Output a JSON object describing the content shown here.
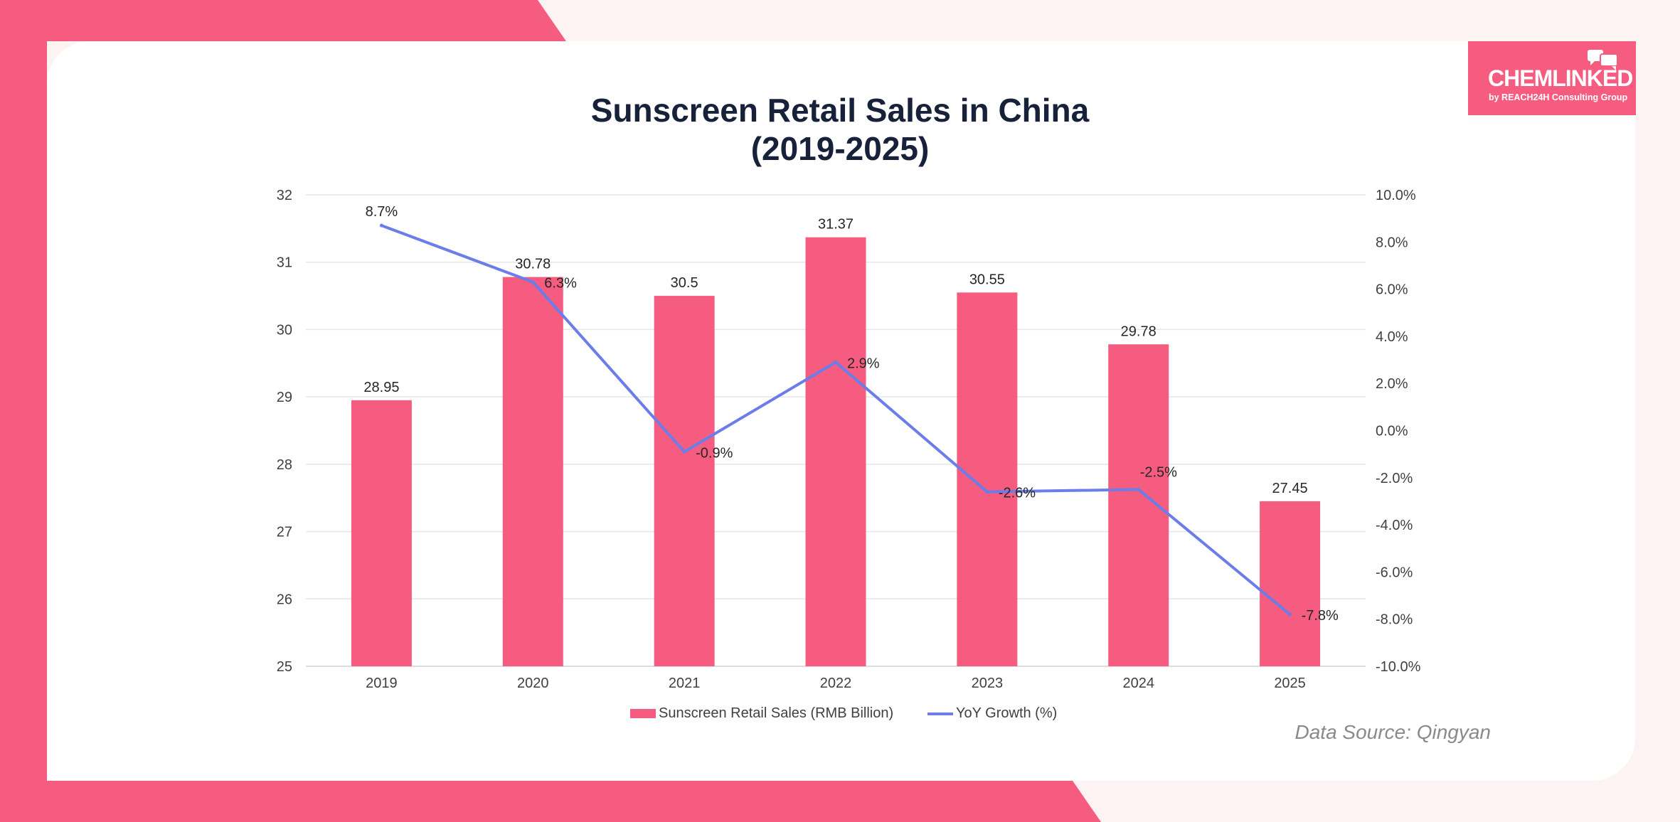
{
  "colors": {
    "accent": "#f55c7f",
    "line": "#6b7de8",
    "title": "#17213a",
    "background": "#fdf3f3",
    "card": "#ffffff"
  },
  "logo": {
    "name": "CHEMLINKED",
    "subtitle": "by REACH24H Consulting Group"
  },
  "chart_data": {
    "type": "bar",
    "title_line1": "Sunscreen Retail Sales in China",
    "title_line2": "(2019-2025)",
    "categories": [
      "2019",
      "2020",
      "2021",
      "2022",
      "2023",
      "2024",
      "2025"
    ],
    "series": [
      {
        "name": "Sunscreen Retail Sales (RMB Billion)",
        "type": "bar",
        "axis": "left",
        "values": [
          28.95,
          30.78,
          30.5,
          31.37,
          30.55,
          29.78,
          27.45
        ],
        "labels": [
          "28.95",
          "30.78",
          "30.5",
          "31.37",
          "30.55",
          "29.78",
          "27.45"
        ]
      },
      {
        "name": "YoY Growth (%)",
        "type": "line",
        "axis": "right",
        "values": [
          8.7,
          6.3,
          -0.9,
          2.9,
          -2.6,
          -2.5,
          -7.8
        ],
        "labels": [
          "8.7%",
          "6.3%",
          "-0.9%",
          "2.9%",
          "-2.6%",
          "-2.5%",
          "-7.8%"
        ]
      }
    ],
    "y_left": {
      "min": 25,
      "max": 32,
      "ticks": [
        "25",
        "26",
        "27",
        "28",
        "29",
        "30",
        "31",
        "32"
      ]
    },
    "y_right": {
      "min": -10,
      "max": 10,
      "ticks": [
        "-10.0%",
        "-8.0%",
        "-6.0%",
        "-4.0%",
        "-2.0%",
        "0.0%",
        "2.0%",
        "4.0%",
        "6.0%",
        "8.0%",
        "10.0%"
      ]
    },
    "grid": true,
    "legend_position": "bottom",
    "source": "Data Source: Qingyan"
  }
}
